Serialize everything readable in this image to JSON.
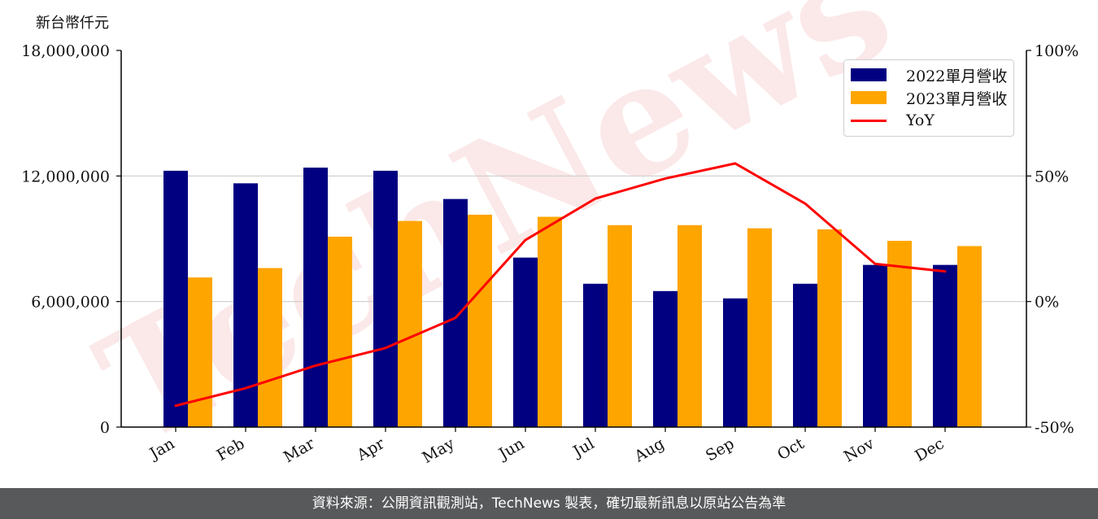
{
  "unit_label": "新台幣仟元",
  "footer_text": "資料來源：公開資訊觀測站，TechNews 製表，確切最新訊息以原站公告為準",
  "watermark_text": "TechNews",
  "colors": {
    "series_2022": "#000080",
    "series_2023": "#ffa500",
    "yoy": "#ff0000",
    "gridline": "#cccccc",
    "footer_bg": "#58595b"
  },
  "chart_data": {
    "type": "bar",
    "categories": [
      "Jan",
      "Feb",
      "Mar",
      "Apr",
      "May",
      "Jun",
      "Jul",
      "Aug",
      "Sep",
      "Oct",
      "Nov",
      "Dec"
    ],
    "series": [
      {
        "name": "2022單月營收",
        "type": "bar",
        "axis": "left",
        "values": [
          12250000,
          11650000,
          12400000,
          12250000,
          10900000,
          8100000,
          6850000,
          6500000,
          6150000,
          6850000,
          7750000,
          7750000
        ]
      },
      {
        "name": "2023單月營收",
        "type": "bar",
        "axis": "left",
        "values": [
          7150000,
          7600000,
          9100000,
          9850000,
          10150000,
          10050000,
          9650000,
          9650000,
          9500000,
          9450000,
          8900000,
          8650000
        ]
      },
      {
        "name": "YoY",
        "type": "line",
        "axis": "right",
        "values": [
          -41.5,
          -34.5,
          -25.5,
          -18.5,
          -6.5,
          24.5,
          41,
          49,
          55,
          39,
          15,
          12
        ]
      }
    ],
    "y_left": {
      "ylim": [
        0,
        18000000
      ],
      "ticks": [
        0,
        6000000,
        12000000,
        18000000
      ],
      "tick_labels": [
        "0",
        "6,000,000",
        "12,000,000",
        "18,000,000"
      ]
    },
    "y_right": {
      "ylim": [
        -50,
        100
      ],
      "ticks": [
        -50,
        0,
        50,
        100
      ],
      "tick_labels": [
        "-50%",
        "0%",
        "50%",
        "100%"
      ]
    },
    "grid": "horizontal",
    "legend_position": "top-right"
  }
}
